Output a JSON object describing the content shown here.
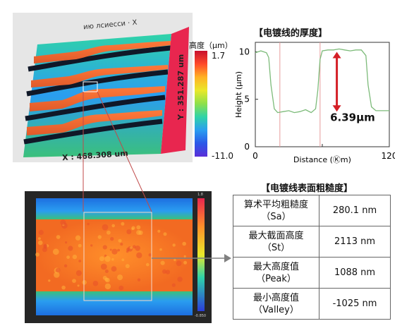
{
  "surface3d": {
    "x_label": "X : 468.308 um",
    "y_label": "Y : 351.287 um",
    "top_label": "ию лсиесси · Х",
    "scale_title": "高度（μm）",
    "scale_max": "1.7",
    "scale_min": "-11.0"
  },
  "chart_title": "【电镀线的厚度】",
  "chart_data": {
    "type": "line",
    "title": "【电镀线的厚度】",
    "xlabel": "Distance (Ⓚm)",
    "ylabel": "Height (μm)",
    "xlim": [
      0,
      120
    ],
    "ylim": [
      0,
      11
    ],
    "x_ticks": [
      "0",
      "60",
      "120"
    ],
    "y_ticks": [
      "0",
      "5",
      "10"
    ],
    "x_tick_labels": [
      "0",
      "",
      "120"
    ],
    "series": [
      {
        "color": "#7dbb7a",
        "x": [
          0,
          5,
          10,
          12,
          14,
          17,
          20,
          25,
          30,
          35,
          40,
          45,
          50,
          54,
          56,
          58,
          60,
          65,
          70,
          75,
          80,
          85,
          90,
          95,
          99,
          101,
          104,
          108,
          112,
          116,
          120
        ],
        "y": [
          9.9,
          10.1,
          9.9,
          9.4,
          6.5,
          4.0,
          3.6,
          3.7,
          3.8,
          3.6,
          3.7,
          3.9,
          3.6,
          4.0,
          6.0,
          9.2,
          10.1,
          10.2,
          10.2,
          10.3,
          10.2,
          10.1,
          10.2,
          10.2,
          9.6,
          6.5,
          4.2,
          3.8,
          3.8,
          3.8,
          3.8
        ]
      }
    ],
    "annotation": "6.39μm",
    "annotation_color": "#d41f26",
    "marker_color": "#e79b9b",
    "marker_x": [
      22,
      58
    ]
  },
  "table_title": "【电镀线表面粗糙度】",
  "roughness": [
    {
      "name": "算术平均粗糙度",
      "symbol": "（Sa）",
      "value": "280.1 nm"
    },
    {
      "name": "最大截面高度",
      "symbol": "（St）",
      "value": "2113 nm"
    },
    {
      "name": "最大高度值",
      "symbol": "（Peak）",
      "value": "1088 nm"
    },
    {
      "name": "最小高度值",
      "symbol": "（Valley）",
      "value": "-1025 nm"
    }
  ],
  "heatmap": {
    "top_value": "1.8",
    "bottom_value": "-0.850"
  },
  "colors": {
    "connector": "#c04a4a",
    "arrow": "#808080"
  }
}
